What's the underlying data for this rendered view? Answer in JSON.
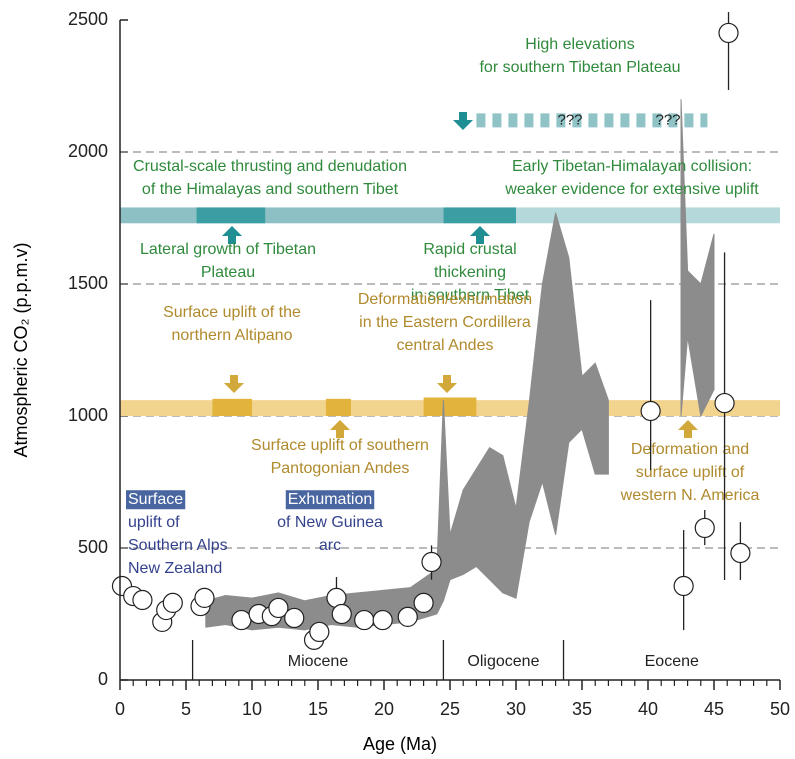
{
  "chart_data": {
    "type": "scatter",
    "xlabel": "Age (Ma)",
    "ylabel": "Atmospheric CO₂ (p.p.m.v)",
    "xlim": [
      0,
      50
    ],
    "ylim": [
      0,
      2500
    ],
    "xticks": [
      0,
      5,
      10,
      15,
      20,
      25,
      30,
      35,
      40,
      45,
      50
    ],
    "xminorticks": [
      1,
      2,
      3,
      4,
      6,
      7,
      8,
      9,
      11,
      12,
      13,
      14,
      16,
      17,
      18,
      19,
      21,
      22,
      23,
      24,
      26,
      27,
      28,
      29,
      31,
      32,
      33,
      34,
      36,
      37,
      38,
      39,
      41,
      42,
      43,
      44,
      46,
      47,
      48,
      49
    ],
    "yticks": [
      0,
      500,
      1000,
      1500,
      2000,
      2500
    ],
    "grid": true,
    "points": {
      "x": [
        0.15,
        1.0,
        1.7,
        3.2,
        3.5,
        4.0,
        6.1,
        6.4,
        9.2,
        10.5,
        11.5,
        12.0,
        13.2,
        14.7,
        15.1,
        16.4,
        16.8,
        18.5,
        19.9,
        21.8,
        23.0,
        23.6,
        40.2,
        42.7,
        44.3,
        45.8,
        46.1,
        47.0
      ],
      "y": [
        356,
        318,
        303,
        220,
        265,
        292,
        280,
        311,
        227,
        250,
        242,
        273,
        235,
        152,
        182,
        311,
        250,
        227,
        227,
        239,
        292,
        447,
        1019,
        356,
        576,
        1049,
        2451,
        481
      ],
      "y_low": [
        null,
        null,
        null,
        null,
        null,
        null,
        null,
        null,
        null,
        null,
        null,
        null,
        null,
        null,
        null,
        265,
        null,
        null,
        null,
        null,
        null,
        380,
        795,
        189,
        511,
        379,
        2235,
        379
      ],
      "y_high": [
        null,
        null,
        null,
        null,
        null,
        null,
        null,
        null,
        null,
        null,
        null,
        null,
        null,
        null,
        null,
        390,
        null,
        null,
        null,
        null,
        null,
        510,
        1439,
        568,
        644,
        1620,
        2530,
        598
      ]
    },
    "band": {
      "color": "#8c8c8c",
      "x": [
        6.5,
        8,
        10,
        12,
        14,
        16,
        18,
        20,
        22,
        24,
        24.5,
        25,
        26,
        27,
        28,
        29,
        30,
        31,
        32,
        33,
        34,
        35,
        36,
        37,
        null,
        42.5,
        43,
        44,
        45
      ],
      "low": [
        200,
        210,
        190,
        200,
        190,
        210,
        200,
        210,
        220,
        250,
        300,
        380,
        400,
        430,
        380,
        330,
        310,
        600,
        750,
        550,
        900,
        950,
        780,
        780,
        null,
        1000,
        1300,
        1000,
        1100
      ],
      "high": [
        300,
        320,
        310,
        330,
        300,
        320,
        330,
        340,
        350,
        420,
        1060,
        550,
        720,
        800,
        880,
        850,
        650,
        1050,
        1500,
        1770,
        1600,
        1150,
        1200,
        1060,
        null,
        2200,
        1550,
        1500,
        1690
      ]
    },
    "bars": [
      {
        "from": 0,
        "to": 24.5,
        "low": 1730,
        "high": 1790,
        "color": "#8cc0c4"
      },
      {
        "from": 24.5,
        "to": 50,
        "low": 1730,
        "high": 1790,
        "color": "#b5d8da"
      },
      {
        "from": 5.8,
        "to": 11,
        "low": 1730,
        "high": 1790,
        "color": "#3a9ea3"
      },
      {
        "from": 24.5,
        "to": 30,
        "low": 1730,
        "high": 1790,
        "color": "#3a9ea3"
      },
      {
        "from": 0,
        "to": 50,
        "low": 1000,
        "high": 1060,
        "color": "#f3d48f"
      },
      {
        "from": 7,
        "to": 10,
        "low": 1000,
        "high": 1065,
        "color": "#e2b43c"
      },
      {
        "from": 15.6,
        "to": 17.5,
        "low": 1000,
        "high": 1065,
        "color": "#e2b43c"
      },
      {
        "from": 23,
        "to": 27,
        "low": 1000,
        "high": 1070,
        "color": "#e2b43c"
      }
    ],
    "dashed_range": {
      "from": 27,
      "to": 44.5,
      "y": 2120,
      "color": "#8fc3c6",
      "marks": [
        "???",
        "???"
      ]
    },
    "epochs": [
      {
        "name": "Miocene",
        "start": 5.5,
        "end": 24.5
      },
      {
        "name": "Oligocene",
        "start": 24.5,
        "end": 33.6
      },
      {
        "name": "Eocene",
        "start": 33.6,
        "end": 50
      }
    ],
    "annotations": [
      {
        "lines": [
          "High elevations",
          "for southern Tibetan Plateau"
        ],
        "color": "#2f8a3c"
      },
      {
        "lines": [
          "Crustal-scale thrusting and denudation",
          "of the Himalayas and southern Tibet"
        ],
        "color": "#2f8a3c"
      },
      {
        "lines": [
          "Early Tibetan-Himalayan collision:",
          "weaker evidence for extensive uplift"
        ],
        "color": "#2f8a3c"
      },
      {
        "lines": [
          "Lateral growth of Tibetan",
          "Plateau"
        ],
        "color": "#2f8a3c"
      },
      {
        "lines": [
          "Rapid crustal",
          "thickening",
          "in southern Tibet"
        ],
        "color": "#2f8a3c"
      },
      {
        "lines": [
          "Surface uplift of the",
          "northern Altipano"
        ],
        "color": "#b08a2c"
      },
      {
        "lines": [
          "Deformation/exhumation",
          "in the Eastern Cordillera",
          "central Andes"
        ],
        "color": "#b08a2c"
      },
      {
        "lines": [
          "Surface uplift of southern",
          "Pantogonian Andes"
        ],
        "color": "#b08a2c"
      },
      {
        "lines": [
          "Deformation and",
          "surface uplift of",
          "western N. America"
        ],
        "color": "#b08a2c"
      },
      {
        "lines": [
          "Surface",
          "uplift of",
          "Southern Alps",
          "New Zealand"
        ],
        "color": "#34428c",
        "boxed_first": true
      },
      {
        "lines": [
          "Exhumation",
          "of New Guinea",
          "arc"
        ],
        "color": "#34428c",
        "boxed_first": true
      }
    ]
  }
}
